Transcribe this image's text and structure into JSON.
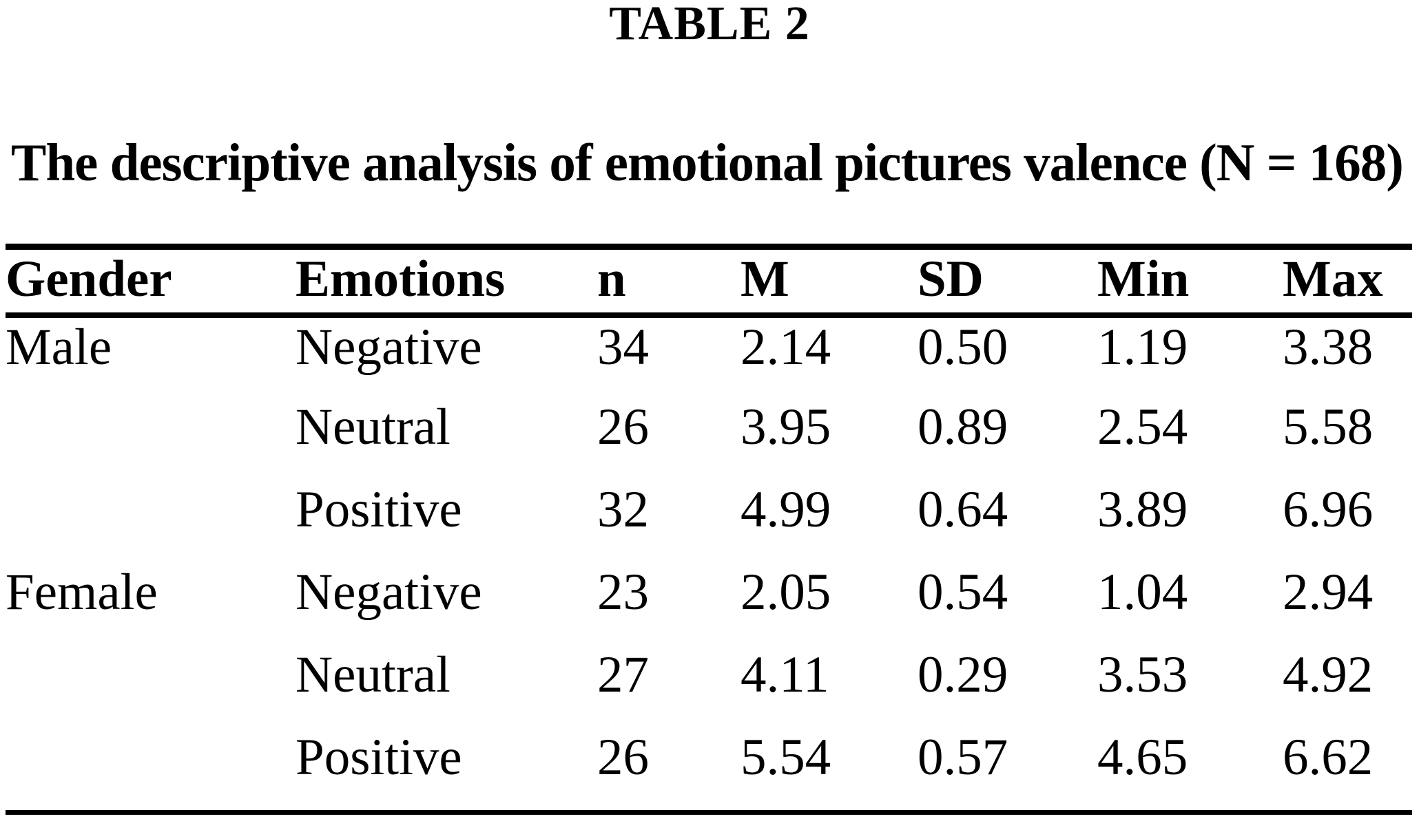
{
  "title": "TABLE 2",
  "caption": "The descriptive analysis of emotional pictures valence (N = 168)",
  "colors": {
    "text": "#000000",
    "background": "#ffffff",
    "rule": "#000000"
  },
  "table": {
    "columns": {
      "gender": "Gender",
      "emotions": "Emotions",
      "n": "n",
      "m": "M",
      "sd": "SD",
      "min": "Min",
      "max": "Max"
    },
    "rows": [
      {
        "gender": "Male",
        "emotion": "Negative",
        "n": "34",
        "m": "2.14",
        "sd": "0.50",
        "min": "1.19",
        "max": "3.38"
      },
      {
        "gender": "",
        "emotion": "Neutral",
        "n": "26",
        "m": "3.95",
        "sd": "0.89",
        "min": "2.54",
        "max": "5.58"
      },
      {
        "gender": "",
        "emotion": "Positive",
        "n": "32",
        "m": "4.99",
        "sd": "0.64",
        "min": "3.89",
        "max": "6.96"
      },
      {
        "gender": "Female",
        "emotion": "Negative",
        "n": "23",
        "m": "2.05",
        "sd": "0.54",
        "min": "1.04",
        "max": "2.94"
      },
      {
        "gender": "",
        "emotion": "Neutral",
        "n": "27",
        "m": "4.11",
        "sd": "0.29",
        "min": "3.53",
        "max": "4.92"
      },
      {
        "gender": "",
        "emotion": "Positive",
        "n": "26",
        "m": "5.54",
        "sd": "0.57",
        "min": "4.65",
        "max": "6.62"
      }
    ]
  }
}
